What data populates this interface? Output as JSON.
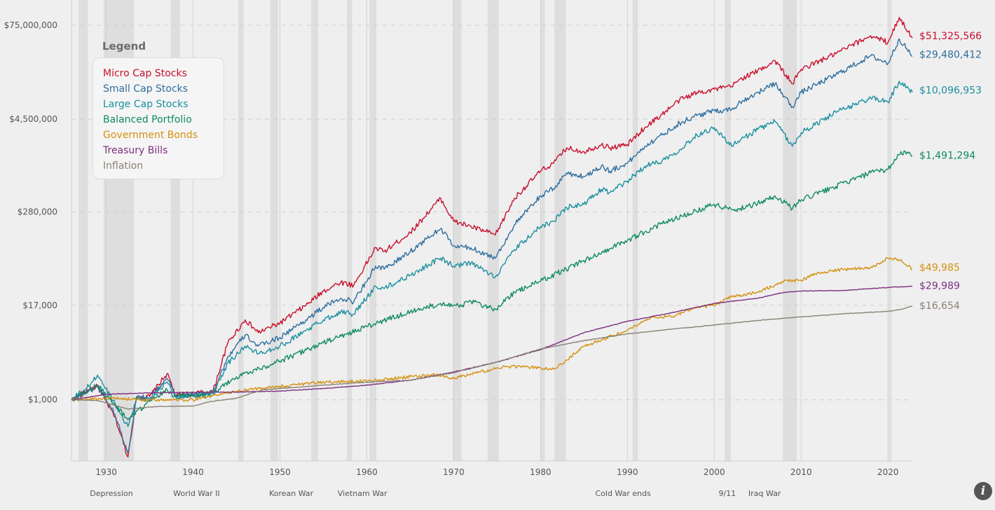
{
  "chart_data": {
    "type": "line",
    "title": "",
    "xlabel": "",
    "ylabel": "",
    "yscale": "log",
    "xlim": [
      1926,
      2022.8
    ],
    "ylim": [
      160,
      160000000
    ],
    "grid": true,
    "legend": {
      "title": "Legend",
      "placement": "top-left"
    },
    "y_ticks": [
      {
        "value": 75000000,
        "label": "$75,000,000"
      },
      {
        "value": 4500000,
        "label": "$4,500,000"
      },
      {
        "value": 280000,
        "label": "$280,000"
      },
      {
        "value": 17000,
        "label": "$17,000"
      },
      {
        "value": 1000,
        "label": "$1,000"
      }
    ],
    "x_ticks": [
      1930,
      1940,
      1950,
      1960,
      1970,
      1980,
      1990,
      2000,
      2010,
      2020
    ],
    "recession_bands": [
      [
        1926.8,
        1927.9
      ],
      [
        1929.7,
        1933.2
      ],
      [
        1937.4,
        1938.5
      ],
      [
        1945.2,
        1945.8
      ],
      [
        1948.9,
        1949.8
      ],
      [
        1953.6,
        1954.4
      ],
      [
        1957.7,
        1958.3
      ],
      [
        1960.3,
        1961.1
      ],
      [
        1969.9,
        1970.9
      ],
      [
        1973.9,
        1975.2
      ],
      [
        1980.0,
        1980.5
      ],
      [
        1981.6,
        1982.9
      ],
      [
        1990.6,
        1991.2
      ],
      [
        2001.2,
        2001.9
      ],
      [
        2007.9,
        2009.5
      ],
      [
        2020.1,
        2020.4
      ]
    ],
    "events": [
      {
        "label": "Depression",
        "x": 1930.6
      },
      {
        "label": "World War II",
        "x": 1940.4
      },
      {
        "label": "Korean War",
        "x": 1951.3
      },
      {
        "label": "Vietnam War",
        "x": 1959.5
      },
      {
        "label": "Cold War ends",
        "x": 1989.5
      },
      {
        "label": "9/11",
        "x": 2001.5
      },
      {
        "label": "Iraq War",
        "x": 2005.8
      }
    ],
    "series": [
      {
        "name": "Micro Cap Stocks",
        "color": "#c8102e",
        "end_label": "$51,325,566",
        "x": [
          1926,
          1928,
          1929,
          1931,
          1932.5,
          1933.5,
          1935,
          1937,
          1938,
          1940,
          1942.3,
          1944,
          1946,
          1947.5,
          1950,
          1953,
          1955,
          1957,
          1958.5,
          1961,
          1962,
          1965,
          1968.5,
          1970,
          1972,
          1974.8,
          1977,
          1980,
          1981.5,
          1983,
          1985,
          1987,
          1988,
          1990,
          1992,
          1994,
          1996,
          1998,
          2000,
          2002,
          2003,
          2005,
          2007,
          2009,
          2010,
          2014,
          2018,
          2020,
          2021.3,
          2022.8
        ],
        "y": [
          1000,
          1350,
          1500,
          600,
          180,
          1100,
          1100,
          2200,
          1150,
          1200,
          1300,
          5500,
          11000,
          7500,
          10000,
          17000,
          26000,
          34000,
          31000,
          95000,
          85000,
          150000,
          420000,
          210000,
          180000,
          140000,
          420000,
          950000,
          1200000,
          1900000,
          1700000,
          2100000,
          1900000,
          2100000,
          3500000,
          5200000,
          8000000,
          10000000,
          11000000,
          12000000,
          15000000,
          19000000,
          26000000,
          13000000,
          20000000,
          32000000,
          55000000,
          45000000,
          95000000,
          51325566
        ]
      },
      {
        "name": "Small Cap Stocks",
        "color": "#2e6e9e",
        "end_label": "$29,480,412",
        "x": [
          1926,
          1928,
          1929,
          1931,
          1932.5,
          1933.5,
          1935,
          1937,
          1938,
          1940,
          1942.3,
          1944,
          1946,
          1947.5,
          1950,
          1953,
          1955,
          1957,
          1958.5,
          1961,
          1962,
          1965,
          1968.5,
          1970,
          1972,
          1974.8,
          1977,
          1980,
          1981.5,
          1983,
          1985,
          1987,
          1988,
          1990,
          1992,
          1994,
          1996,
          1998,
          2000,
          2002,
          2003,
          2005,
          2007,
          2009,
          2010,
          2014,
          2018,
          2020,
          2021.3,
          2022.8
        ],
        "y": [
          1000,
          1300,
          1500,
          650,
          200,
          1100,
          1050,
          1900,
          1100,
          1150,
          1250,
          3600,
          7000,
          5000,
          6500,
          11000,
          16000,
          21000,
          19000,
          55000,
          50000,
          85000,
          170000,
          100000,
          95000,
          70000,
          190000,
          450000,
          560000,
          900000,
          800000,
          1100000,
          950000,
          1200000,
          2000000,
          2800000,
          4000000,
          5000000,
          5800000,
          6000000,
          7500000,
          10000000,
          13000000,
          6500000,
          10000000,
          17000000,
          30000000,
          24000000,
          50000000,
          29480412
        ]
      },
      {
        "name": "Large Cap Stocks",
        "color": "#1a8fa0",
        "end_label": "$10,096,953",
        "x": [
          1926,
          1928,
          1929,
          1931,
          1932.5,
          1933.5,
          1935,
          1937,
          1938,
          1940,
          1942.3,
          1944,
          1946,
          1947.5,
          1950,
          1953,
          1955,
          1957,
          1958.5,
          1961,
          1962,
          1965,
          1968.5,
          1970,
          1972,
          1974.8,
          1977,
          1980,
          1981.5,
          1983,
          1985,
          1987,
          1988,
          1990,
          1992,
          1994,
          1996,
          1998,
          2000,
          2002,
          2003,
          2005,
          2007,
          2009,
          2010,
          2014,
          2018,
          2020,
          2021.3,
          2022.8
        ],
        "y": [
          1000,
          1500,
          2100,
          900,
          450,
          1050,
          1000,
          1700,
          1100,
          1150,
          1250,
          3000,
          5000,
          4000,
          5000,
          8000,
          11000,
          14000,
          13000,
          30000,
          28000,
          42000,
          70000,
          55000,
          60000,
          40000,
          90000,
          180000,
          210000,
          320000,
          350000,
          550000,
          500000,
          700000,
          1100000,
          1300000,
          1800000,
          2800000,
          3500000,
          2000000,
          2400000,
          3300000,
          4200000,
          2000000,
          3000000,
          5500000,
          8500000,
          7500000,
          14000000,
          10096953
        ]
      },
      {
        "name": "Balanced Portfolio",
        "color": "#0f8a62",
        "end_label": "$1,491,294",
        "x": [
          1926,
          1929,
          1932.5,
          1935,
          1937,
          1938,
          1942,
          1945,
          1950,
          1955,
          1960,
          1965,
          1968.5,
          1971,
          1972,
          1974.8,
          1977,
          1980,
          1985,
          1990,
          1995,
          2000,
          2002,
          2003,
          2005,
          2007,
          2009,
          2010,
          2014,
          2018,
          2020,
          2021.5,
          2022.8
        ],
        "y": [
          1000,
          1550,
          550,
          950,
          1350,
          1100,
          1150,
          2000,
          3200,
          5500,
          9000,
          14000,
          18000,
          17000,
          19000,
          15000,
          25000,
          35000,
          65000,
          120000,
          220000,
          350000,
          300000,
          310000,
          360000,
          450000,
          310000,
          400000,
          600000,
          900000,
          1000000,
          1700000,
          1491294
        ]
      },
      {
        "name": "Government Bonds",
        "color": "#d4900e",
        "end_label": "$49,985",
        "x": [
          1926,
          1930,
          1935,
          1940,
          1945,
          1950,
          1955,
          1960,
          1965,
          1968,
          1970,
          1973,
          1976,
          1978,
          1980,
          1981.5,
          1983,
          1985,
          1987,
          1990,
          1993,
          1995,
          1998,
          2000,
          2002,
          2005,
          2008,
          2010,
          2012,
          2015,
          2018,
          2020,
          2021.5,
          2022.8
        ],
        "y": [
          1000,
          1050,
          1000,
          1000,
          1300,
          1500,
          1700,
          1750,
          2000,
          2100,
          1900,
          2300,
          2700,
          2700,
          2600,
          2500,
          3300,
          5000,
          6000,
          8000,
          12000,
          12000,
          16000,
          17000,
          22000,
          25000,
          35000,
          36000,
          45000,
          50000,
          52000,
          70000,
          67000,
          49985
        ]
      },
      {
        "name": "Treasury Bills",
        "color": "#7d2f80",
        "end_label": "$29,989",
        "x": [
          1926,
          1930,
          1935,
          1940,
          1945,
          1950,
          1955,
          1960,
          1965,
          1970,
          1975,
          1980,
          1985,
          1990,
          1995,
          2000,
          2005,
          2008,
          2010,
          2015,
          2020,
          2022.8
        ],
        "y": [
          1000,
          1180,
          1230,
          1250,
          1260,
          1300,
          1400,
          1550,
          1800,
          2300,
          3100,
          4500,
          7500,
          10500,
          13500,
          18000,
          21000,
          25000,
          26000,
          26500,
          29000,
          29989
        ]
      },
      {
        "name": "Inflation",
        "color": "#8a8275",
        "end_label": "$16,654",
        "x": [
          1926,
          1929,
          1932.5,
          1936,
          1940,
          1942,
          1945,
          1948,
          1950,
          1955,
          1960,
          1965,
          1970,
          1975,
          1980,
          1985,
          1990,
          1995,
          2000,
          2005,
          2010,
          2015,
          2020,
          2021.5,
          2022.8
        ],
        "y": [
          1000,
          980,
          760,
          820,
          830,
          950,
          1050,
          1350,
          1400,
          1550,
          1700,
          1800,
          2250,
          3100,
          4600,
          5900,
          7200,
          8300,
          9400,
          10800,
          12000,
          13200,
          14200,
          15000,
          16654
        ]
      }
    ]
  },
  "info_button": {
    "icon": "info-icon",
    "glyph": "i"
  }
}
